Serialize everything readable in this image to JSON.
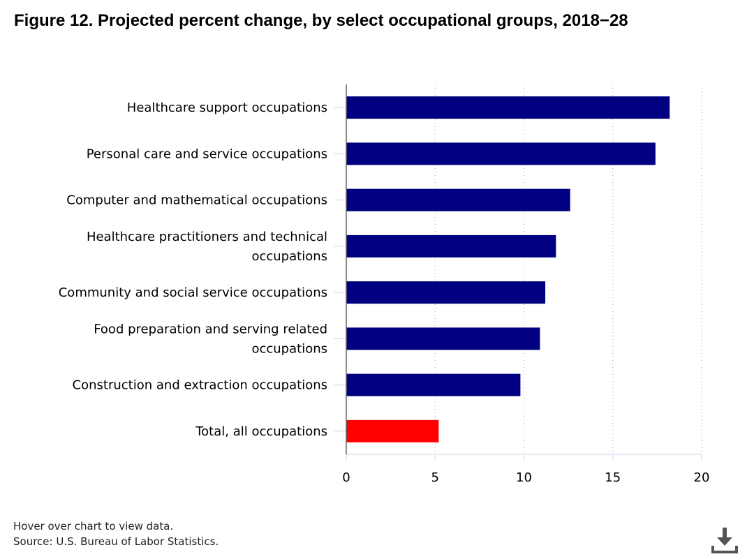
{
  "title": "Figure 12. Projected percent change, by select occupational groups, 2018−28",
  "footer": {
    "hover_note": "Hover over chart to view data.",
    "source": "Source: U.S. Bureau of Labor Statistics."
  },
  "download_icon": "download-icon",
  "colors": {
    "series": "#000080",
    "highlight": "#ff0000"
  },
  "chart_data": {
    "type": "bar",
    "orientation": "horizontal",
    "categories": [
      [
        "Healthcare support occupations"
      ],
      [
        "Personal care and service occupations"
      ],
      [
        "Computer and mathematical occupations"
      ],
      [
        "Healthcare practitioners and technical",
        "occupations"
      ],
      [
        "Community and social service occupations"
      ],
      [
        "Food preparation and serving related",
        "occupations"
      ],
      [
        "Construction and extraction occupations"
      ],
      [
        "Total, all occupations"
      ]
    ],
    "values": [
      18.2,
      17.4,
      12.6,
      11.8,
      11.2,
      10.9,
      9.8,
      5.2
    ],
    "bar_colors": [
      "#000080",
      "#000080",
      "#000080",
      "#000080",
      "#000080",
      "#000080",
      "#000080",
      "#ff0000"
    ],
    "xlim": [
      0,
      20
    ],
    "xticks": [
      0,
      5,
      10,
      15,
      20
    ],
    "grid": "vertical dotted",
    "legend": "none"
  }
}
